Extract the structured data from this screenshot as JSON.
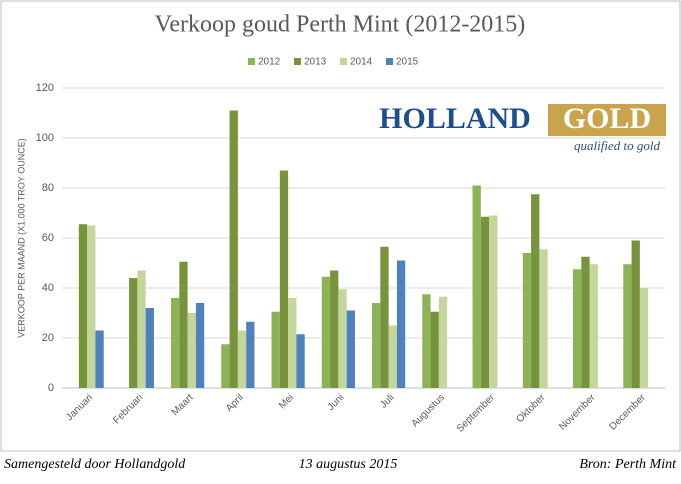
{
  "chart_data": {
    "type": "bar",
    "title": "Verkoop goud Perth Mint (2012-2015)",
    "y_label": "VERKOOP PER MAAND (X1.000 TROY OUNCE)",
    "categories": [
      "Januari",
      "Februari",
      "Maart",
      "April",
      "Mei",
      "Juni",
      "Juli",
      "Augustus",
      "September",
      "Oktober",
      "November",
      "December"
    ],
    "series": [
      {
        "name": "2012",
        "color": "#8cb356",
        "values": [
          null,
          null,
          36,
          17.5,
          30.5,
          44.5,
          34,
          37.5,
          81,
          54,
          47.5,
          49.5
        ]
      },
      {
        "name": "2013",
        "color": "#77933c",
        "values": [
          65.5,
          44,
          50.5,
          111,
          87,
          47,
          56.5,
          30.5,
          68.5,
          77.5,
          52.5,
          59
        ]
      },
      {
        "name": "2014",
        "color": "#c3d69b",
        "values": [
          65,
          47,
          30,
          23,
          36,
          39.5,
          25,
          36.5,
          69,
          55.5,
          49.5,
          40
        ]
      },
      {
        "name": "2015",
        "color": "#4f81bd",
        "values": [
          23,
          32,
          34,
          26.5,
          21.5,
          31,
          51,
          null,
          null,
          null,
          null,
          null
        ]
      }
    ],
    "ylim": [
      0,
      120
    ],
    "yticks": [
      0,
      20,
      40,
      60,
      80,
      100,
      120
    ],
    "grid": true,
    "legend": "top"
  },
  "logo": {
    "name_left": "HOLLAND",
    "name_right": "GOLD",
    "tagline": "qualified to gold"
  },
  "footer": {
    "left": "Samengesteld door Hollandgold",
    "center": "13 augustus 2015",
    "right": "Bron: Perth Mint"
  }
}
